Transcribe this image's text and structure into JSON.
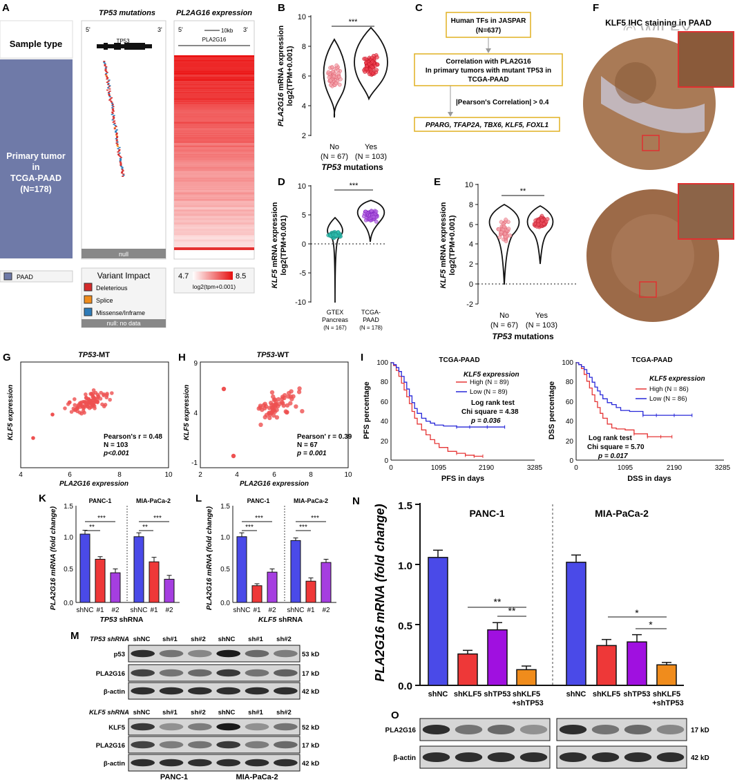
{
  "watermark": "© WILEY",
  "panels": {
    "A": {
      "letter": "A",
      "col_tp53": "TP53 mutations",
      "col_pla": "PL2AG16 expression",
      "sample_type": "Sample type",
      "group_lines": [
        "Primary tumor",
        "in",
        "TCGA-PAAD",
        "(N=178)"
      ],
      "five": "5'",
      "three": "3'",
      "gene_tp53": "TP53",
      "gene_pla": "PLA2G16",
      "scale": "10kb",
      "null_bar": "null",
      "legend_paad": "PAAD",
      "variant_title": "Variant Impact",
      "variants": [
        "Deleterious",
        "Splice",
        "Missense/Inframe"
      ],
      "variant_colors": [
        "#d42a2a",
        "#f08c1c",
        "#2e7bb8"
      ],
      "null_no_data": "null: no data",
      "scale_min": "4.7",
      "scale_max": "8.5",
      "scale_unit": "log2(tpm+0.001)"
    },
    "B": {
      "letter": "B",
      "ylabel_gene": "PLA2G16",
      "ylabel_rest": " mRNA expression",
      "ylabel2": "log2(TPM+0.001)",
      "yticks": [
        "10",
        "8",
        "6",
        "4",
        "2"
      ],
      "groups": [
        {
          "name": "No",
          "n": "(N = 67)"
        },
        {
          "name": "Yes",
          "n": "(N = 103)"
        }
      ],
      "xlabel_gene": "TP53",
      "xlabel_rest": " mutations",
      "sig": "***"
    },
    "C": {
      "letter": "C",
      "box1": [
        "Human TFs in JASPAR",
        "(N=637)"
      ],
      "box2": [
        "Correlation with PLA2G16",
        "In primary tumors with mutant TP53 in",
        "TCGA-PAAD"
      ],
      "criterion": "|Pearson's Correlation| > 0.4",
      "box3": "PPARG, TFAP2A, TBX6, KLF5, FOXL1"
    },
    "D": {
      "letter": "D",
      "ylabel_gene": "KLF5",
      "ylabel_rest": " mRNA expression",
      "ylabel2": "log2(TPM+0.001)",
      "yticks": [
        "10",
        "5",
        "0",
        "-5",
        "-10"
      ],
      "groups": [
        {
          "l1": "GTEX",
          "l2": "Pancreas",
          "n": "(N = 167)"
        },
        {
          "l1": "TCGA-",
          "l2": "PAAD",
          "n": "(N = 178)"
        }
      ],
      "sig": "***"
    },
    "E": {
      "letter": "E",
      "ylabel_gene": "KLF5",
      "ylabel_rest": " mRNA expression",
      "ylabel2": "log2(TPM+0.001)",
      "yticks": [
        "10",
        "8",
        "6",
        "4",
        "2",
        "0",
        "-2"
      ],
      "groups": [
        {
          "name": "No",
          "n": "(N = 67)"
        },
        {
          "name": "Yes",
          "n": "(N = 103)"
        }
      ],
      "xlabel_gene": "TP53",
      "xlabel_rest": " mutations",
      "sig": "**"
    },
    "F": {
      "letter": "F",
      "title": "KLF5 IHC staining in PAAD"
    },
    "G": {
      "letter": "G",
      "title_gene": "TP53",
      "title_rest": "-MT",
      "ylabel": "KLF5 expression",
      "xlabel": "PLA2G16 expression",
      "xticks": [
        "4",
        "6",
        "8",
        "10"
      ],
      "stats": [
        "Pearson's r = 0.48",
        "N = 103",
        "p<0.001"
      ]
    },
    "H": {
      "letter": "H",
      "title_gene": "TP53",
      "title_rest": "-WT",
      "ylabel": "KLF5 expression",
      "xlabel": "PLA2G16 expression",
      "xticks": [
        "2",
        "4",
        "6",
        "8",
        "10"
      ],
      "yticks": [
        "9",
        "4",
        "-1"
      ],
      "stats": [
        "Pearson' r = 0.39",
        "N = 67",
        "p = 0.001"
      ]
    },
    "I": {
      "letter": "I",
      "title": "TCGA-PAAD",
      "pfs_ylabel": "PFS percentage",
      "pfs_xlabel": "PFS in days",
      "dss_ylabel": "DSS percentage",
      "dss_xlabel": "DSS in days",
      "yticks": [
        "100",
        "80",
        "60",
        "40",
        "20",
        "0"
      ],
      "xticks": [
        "0",
        "1095",
        "2190",
        "3285"
      ],
      "legend_title": "KLF5 expression",
      "pfs_legend": [
        "High (N = 89)",
        "Low (N = 89)"
      ],
      "dss_legend": [
        "High (N = 86)",
        "Low (N = 86)"
      ],
      "pfs_stats": [
        "Log rank test",
        "Chi square = 4.38",
        "p = 0.036"
      ],
      "dss_stats": [
        "Log rank test",
        "Chi square = 5.70",
        "p = 0.017"
      ]
    },
    "K": {
      "letter": "K",
      "ylabel": "PLA2G16 mRNA (fold change)",
      "yticks": [
        "1.5",
        "1.0",
        "0.5",
        "0.0"
      ],
      "cells": [
        "PANC-1",
        "MIA-PaCa-2"
      ],
      "xcats": [
        "shNC",
        "#1",
        "#2",
        "shNC",
        "#1",
        "#2"
      ],
      "xlabel_gene": "TP53",
      "xlabel_rest": " shRNA",
      "sig": [
        "**",
        "***",
        "**",
        "***"
      ]
    },
    "L": {
      "letter": "L",
      "ylabel": "PLA2G16 mRNA (fold change)",
      "yticks": [
        "1.5",
        "1.0",
        "0.5",
        "0.0"
      ],
      "cells": [
        "PANC-1",
        "MIA-PaCa-2"
      ],
      "xcats": [
        "shNC",
        "#1",
        "#2",
        "shNC",
        "#1",
        "#2"
      ],
      "xlabel_gene": "KLF5",
      "xlabel_rest": " shRNA",
      "sig": [
        "***",
        "***",
        "***",
        "***"
      ]
    },
    "M": {
      "letter": "M",
      "tp53_header": "TP53 shRNA",
      "klf5_header": "KLF5 shRNA",
      "lanes": [
        "shNC",
        "sh#1",
        "sh#2",
        "shNC",
        "sh#1",
        "sh#2"
      ],
      "top_rows": [
        {
          "name": "p53",
          "kd": "53 kD"
        },
        {
          "name": "PLA2G16",
          "kd": "17 kD"
        },
        {
          "name": "β-actin",
          "kd": "42 kD"
        }
      ],
      "bottom_rows": [
        {
          "name": "KLF5",
          "kd": "52 kD"
        },
        {
          "name": "PLA2G16",
          "kd": "17 kD"
        },
        {
          "name": "β-actin",
          "kd": "42 kD"
        }
      ],
      "cells": [
        "PANC-1",
        "MIA-PaCa-2"
      ]
    },
    "N": {
      "letter": "N",
      "ylabel": "PLA2G16 mRNA (fold change)",
      "yticks": [
        "1.5",
        "1.0",
        "0.5",
        "0.0"
      ],
      "cells": [
        "PANC-1",
        "MIA-PaCa-2"
      ],
      "xcats": [
        {
          "l1": "shNC"
        },
        {
          "l1": "shKLF5"
        },
        {
          "l1": "shTP53"
        },
        {
          "l1": "shKLF5",
          "l2": "+shTP53"
        },
        {
          "l1": "shNC"
        },
        {
          "l1": "shKLF5"
        },
        {
          "l1": "shTP53"
        },
        {
          "l1": "shKLF5",
          "l2": "+shTP53"
        }
      ],
      "sig": [
        "**",
        "**",
        "*",
        "*"
      ]
    },
    "O": {
      "letter": "O",
      "rows": [
        {
          "name": "PLA2G16",
          "kd": "17 kD"
        },
        {
          "name": "β-actin",
          "kd": "42 kD"
        }
      ]
    }
  },
  "chart_data": [
    {
      "type": "bar",
      "panel": "K",
      "categories": [
        "PANC-1 shNC",
        "PANC-1 #1",
        "PANC-1 #2",
        "MIA-PaCa-2 shNC",
        "MIA-PaCa-2 #1",
        "MIA-PaCa-2 #2"
      ],
      "values": [
        1.06,
        0.67,
        0.46,
        1.02,
        0.63,
        0.36
      ],
      "errors": [
        0.06,
        0.04,
        0.06,
        0.06,
        0.07,
        0.06
      ],
      "colors": [
        "#4a4ae8",
        "#ee3838",
        "#a53ee0",
        "#4a4ae8",
        "#ee3838",
        "#a53ee0"
      ],
      "ylim": [
        0,
        1.5
      ]
    },
    {
      "type": "bar",
      "panel": "L",
      "categories": [
        "PANC-1 shNC",
        "PANC-1 #1",
        "PANC-1 #2",
        "MIA-PaCa-2 shNC",
        "MIA-PaCa-2 #1",
        "MIA-PaCa-2 #2"
      ],
      "values": [
        1.02,
        0.26,
        0.47,
        0.96,
        0.33,
        0.62
      ],
      "errors": [
        0.06,
        0.03,
        0.05,
        0.04,
        0.05,
        0.05
      ],
      "colors": [
        "#4a4ae8",
        "#ee3838",
        "#a53ee0",
        "#4a4ae8",
        "#ee3838",
        "#a53ee0"
      ],
      "ylim": [
        0,
        1.5
      ]
    },
    {
      "type": "bar",
      "panel": "N",
      "categories": [
        "PANC-1 shNC",
        "PANC-1 shKLF5",
        "PANC-1 shTP53",
        "PANC-1 shKLF5+shTP53",
        "MIA-PaCa-2 shNC",
        "MIA-PaCa-2 shKLF5",
        "MIA-PaCa-2 shTP53",
        "MIA-PaCa-2 shKLF5+shTP53"
      ],
      "values": [
        1.06,
        0.26,
        0.46,
        0.13,
        1.02,
        0.33,
        0.36,
        0.17
      ],
      "errors": [
        0.06,
        0.03,
        0.06,
        0.03,
        0.06,
        0.05,
        0.06,
        0.02
      ],
      "colors": [
        "#4a4ae8",
        "#ee3838",
        "#a010e0",
        "#f08c1c",
        "#4a4ae8",
        "#ee3838",
        "#a010e0",
        "#f08c1c"
      ],
      "ylim": [
        0,
        1.5
      ]
    },
    {
      "type": "line",
      "panel": "I-PFS",
      "xlim": [
        0,
        3285
      ],
      "ylim": [
        0,
        100
      ],
      "series": [
        {
          "name": "High (N = 89)",
          "color": "#e53434",
          "x": [
            0,
            60,
            120,
            180,
            240,
            300,
            360,
            420,
            480,
            540,
            600,
            700,
            800,
            900,
            1000,
            1100,
            1300,
            1500,
            1700,
            1900,
            2100
          ],
          "y": [
            100,
            97,
            92,
            86,
            79,
            72,
            65,
            58,
            50,
            43,
            37,
            31,
            26,
            21,
            17,
            13,
            9,
            7,
            5,
            4,
            4
          ]
        },
        {
          "name": "Low (N = 89)",
          "color": "#2626d8",
          "x": [
            0,
            60,
            120,
            180,
            240,
            300,
            360,
            420,
            480,
            540,
            600,
            700,
            800,
            900,
            1000,
            1200,
            1500,
            1800,
            2200,
            2600
          ],
          "y": [
            100,
            98,
            95,
            91,
            86,
            80,
            73,
            66,
            59,
            53,
            48,
            43,
            40,
            38,
            36,
            35,
            34,
            34,
            34,
            34
          ]
        }
      ]
    },
    {
      "type": "line",
      "panel": "I-DSS",
      "xlim": [
        0,
        3285
      ],
      "ylim": [
        0,
        100
      ],
      "series": [
        {
          "name": "High (N = 86)",
          "color": "#e53434",
          "x": [
            0,
            60,
            120,
            180,
            240,
            300,
            360,
            420,
            480,
            540,
            600,
            700,
            800,
            900,
            1100,
            1300,
            1600,
            1900,
            2150
          ],
          "y": [
            100,
            98,
            94,
            88,
            81,
            74,
            67,
            60,
            54,
            48,
            43,
            37,
            33,
            32,
            31,
            27,
            24,
            24,
            24
          ]
        },
        {
          "name": "Low (N = 86)",
          "color": "#2626d8",
          "x": [
            0,
            60,
            120,
            180,
            240,
            300,
            360,
            420,
            480,
            540,
            600,
            700,
            800,
            900,
            1000,
            1200,
            1500,
            1800,
            2200,
            2600
          ],
          "y": [
            100,
            98,
            96,
            93,
            89,
            85,
            80,
            75,
            71,
            67,
            63,
            59,
            57,
            54,
            51,
            50,
            46,
            46,
            46,
            46
          ]
        }
      ]
    }
  ]
}
